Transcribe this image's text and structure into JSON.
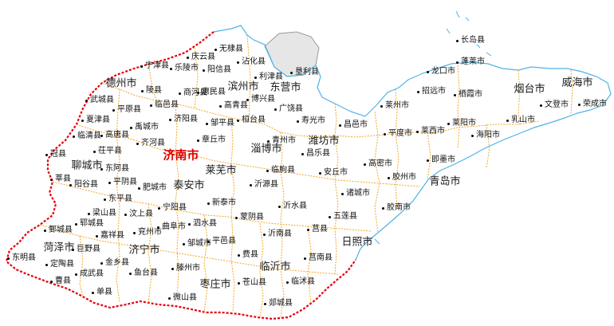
{
  "colors": {
    "border": "#e8000b",
    "internal_boundary": "#f5a623",
    "coast": "#4fb3e8",
    "hebei_region": "#b9b9b9",
    "capital_label": "#e00000"
  },
  "capital": "济南市",
  "cities": [
    "德州市",
    "滨州市",
    "东营市",
    "烟台市",
    "威海市",
    "潍坊市",
    "淄博市",
    "莱芜市",
    "泰安市",
    "聊城市",
    "菏泽市",
    "济宁市",
    "临沂市",
    "日照市",
    "青岛市",
    "枣庄市"
  ],
  "counties": [
    "长岛县",
    "蓬莱市",
    "龙口市",
    "招远市",
    "栖霞市",
    "莱阳市",
    "海阳市",
    "乳山市",
    "文登市",
    "荣成市",
    "莱州市",
    "平度市",
    "莱西市",
    "即墨市",
    "胶州市",
    "胶南市",
    "高密市",
    "诸城市",
    "五莲县",
    "安丘市",
    "昌邑市",
    "寿光市",
    "昌乐县",
    "临朐县",
    "青州市",
    "广饶县",
    "垦利县",
    "利津县",
    "博兴县",
    "沾化县",
    "无棣县",
    "阳信县",
    "庆云县",
    "乐陵市",
    "宁津县",
    "陵县",
    "商河县",
    "惠民县",
    "邹平县",
    "高青县",
    "桓台县",
    "章丘市",
    "济阳县",
    "临邑县",
    "禹城市",
    "齐河县",
    "平原县",
    "武城县",
    "夏津县",
    "临清县",
    "高唐县",
    "冠县",
    "茌平县",
    "东阿县",
    "阳谷县",
    "莘县",
    "平阴县",
    "东平县",
    "肥城市",
    "梁山县",
    "汶上县",
    "宁阳县",
    "新泰市",
    "沂源县",
    "蒙阴县",
    "沂水县",
    "莒县",
    "沂南县",
    "平邑县",
    "费县",
    "莒南县",
    "临沭县",
    "苍山县",
    "郯城县",
    "泗水县",
    "曲阜市",
    "兖州市",
    "邹城市",
    "滕州市",
    "微山县",
    "鱼台县",
    "金乡县",
    "嘉祥县",
    "巨野县",
    "郓城县",
    "鄄城县",
    "成武县",
    "单县",
    "曹县",
    "定陶县",
    "东明县"
  ]
}
